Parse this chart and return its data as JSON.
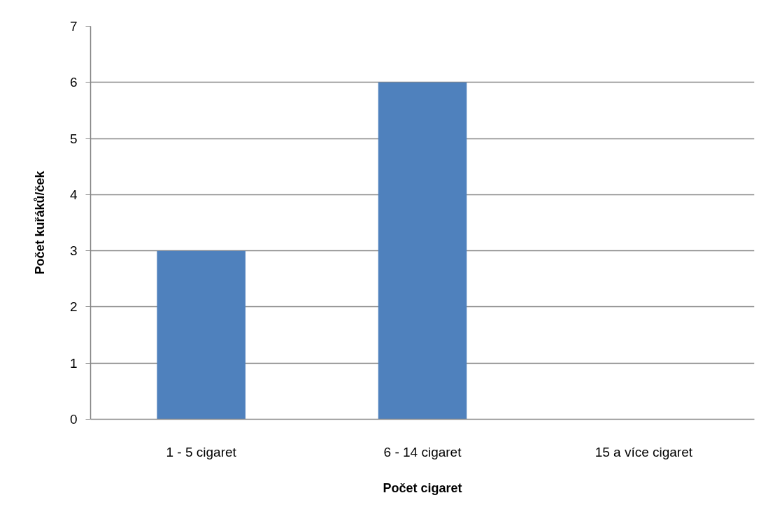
{
  "chart_data": {
    "type": "bar",
    "xlabel": "Počet cigaret",
    "ylabel": "Počet kuřáků/ček",
    "categories": [
      "1 - 5 cigaret",
      "6 - 14 cigaret",
      "15 a více cigaret"
    ],
    "values": [
      3,
      6,
      0
    ],
    "color": "#4f81bd",
    "ylim": [
      0,
      7
    ],
    "yticks": [
      0,
      1,
      2,
      3,
      4,
      5,
      6,
      7
    ],
    "grid": "y"
  }
}
